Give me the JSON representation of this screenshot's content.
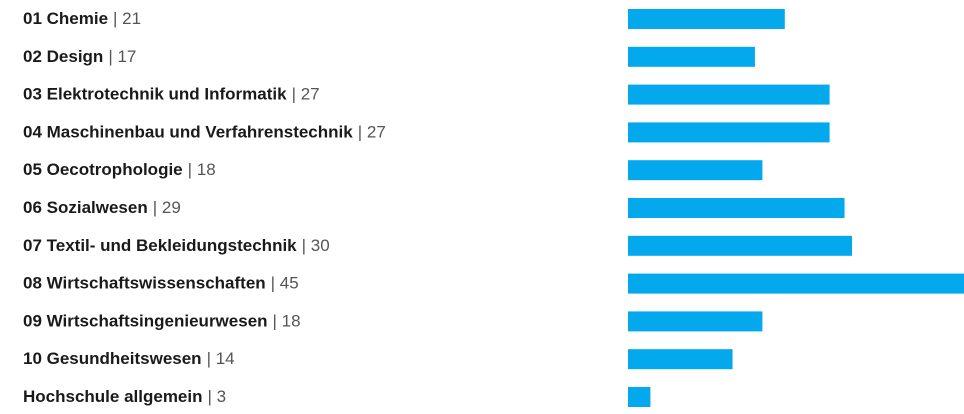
{
  "chart_data": {
    "type": "bar",
    "orientation": "horizontal",
    "categories": [
      "01 Chemie",
      "02 Design",
      "03 Elektrotechnik und Informatik",
      "04 Maschinenbau und Verfahrenstechnik",
      "05 Oecotrophologie",
      "06 Sozialwesen",
      "07 Textil- und Bekleidungstechnik",
      "08 Wirtschaftswissenschaften",
      "09 Wirtschaftsingenieurwesen",
      "10 Gesundheitswesen",
      "Hochschule allgemein"
    ],
    "values": [
      21,
      17,
      27,
      27,
      18,
      29,
      30,
      45,
      18,
      14,
      3
    ],
    "value_labels": [
      "| 21",
      "| 17",
      "| 27",
      "| 27",
      "| 18",
      "| 29",
      "| 30",
      "| 45",
      "| 18",
      "| 14",
      "| 3"
    ],
    "color": "#03a9ec"
  }
}
